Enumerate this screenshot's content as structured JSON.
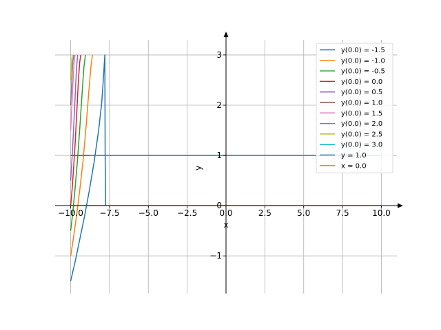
{
  "chart_data": {
    "type": "line",
    "title": "",
    "xlabel": "x",
    "ylabel": "y",
    "xlim": [
      -11,
      11
    ],
    "ylim": [
      -1.75,
      3.3
    ],
    "grid": true,
    "legend_position": "top-right",
    "x_ticks": [
      -10,
      -7.5,
      -5,
      -2.5,
      0,
      2.5,
      5,
      7.5,
      10
    ],
    "x_tick_labels": [
      "−10.0",
      "−7.5",
      "−5.0",
      "−2.5",
      "0.0",
      "2.5",
      "5.0",
      "7.5",
      "10.0"
    ],
    "y_ticks": [
      -1,
      0,
      1,
      2,
      3
    ],
    "y_tick_labels": [
      "−1",
      "0",
      "1",
      "2",
      "3"
    ],
    "series": [
      {
        "name": "y(0.0) = -1.5",
        "color": "#1f77b4",
        "x": [
          -10.0,
          -9.7,
          -9.4,
          -9.1,
          -8.8,
          -8.5,
          -8.2,
          -8.0,
          -7.9,
          -7.85,
          -7.82,
          -7.8,
          -7.78,
          -7.75
        ],
        "y": [
          -1.5,
          -1.1,
          -0.65,
          -0.2,
          0.3,
          0.85,
          1.5,
          2.05,
          2.5,
          2.75,
          2.9,
          3.0,
          1.0,
          0.0
        ]
      },
      {
        "name": "y(0.0) = -1.0",
        "color": "#ff7f0e",
        "x": [
          -10.0,
          -9.8,
          -9.6,
          -9.4,
          -9.2,
          -9.0,
          -8.85,
          -8.7,
          -8.6
        ],
        "y": [
          -1.0,
          -0.6,
          -0.15,
          0.35,
          0.9,
          1.6,
          2.2,
          2.75,
          3.0
        ]
      },
      {
        "name": "y(0.0) = -0.5",
        "color": "#2ca02c",
        "x": [
          -10.0,
          -9.85,
          -9.7,
          -9.55,
          -9.4,
          -9.25,
          -9.15,
          -9.05
        ],
        "y": [
          -0.5,
          -0.1,
          0.4,
          0.95,
          1.6,
          2.3,
          2.75,
          3.0
        ]
      },
      {
        "name": "y(0.0) = 0.0",
        "color": "#d62728",
        "x": [
          -10.0,
          -9.9,
          -9.8,
          -9.7,
          -9.6,
          -9.5,
          -9.42,
          -9.35
        ],
        "y": [
          0.0,
          0.35,
          0.8,
          1.3,
          1.9,
          2.5,
          2.85,
          3.0
        ]
      },
      {
        "name": "y(0.0) = 0.5",
        "color": "#9467bd",
        "x": [
          -10.0,
          -9.9,
          -9.8,
          -9.7,
          -9.62,
          -9.55
        ],
        "y": [
          0.5,
          1.0,
          1.6,
          2.25,
          2.75,
          3.0
        ]
      },
      {
        "name": "y(0.0) = 1.0",
        "color": "#8c564b",
        "x": [
          -10.0,
          -9.6,
          -9.2,
          -8.8
        ],
        "y": [
          1.0,
          1.0,
          1.0,
          1.0
        ]
      },
      {
        "name": "y(0.0) = 1.5",
        "color": "#e377c2",
        "x": [
          -10.0,
          -9.92,
          -9.85,
          -9.78,
          -9.72
        ],
        "y": [
          1.5,
          2.0,
          2.45,
          2.85,
          3.0
        ]
      },
      {
        "name": "y(0.0) = 2.0",
        "color": "#7f7f7f",
        "x": [
          -10.0,
          -9.95,
          -9.9,
          -9.85,
          -9.8
        ],
        "y": [
          2.0,
          2.35,
          2.65,
          2.9,
          3.0
        ]
      },
      {
        "name": "y(0.0) = 2.5",
        "color": "#bcbd22",
        "x": [
          -10.0,
          -9.97,
          -9.93,
          -9.9
        ],
        "y": [
          2.5,
          2.7,
          2.9,
          3.0
        ]
      },
      {
        "name": "y(0.0) = 3.0",
        "color": "#17becf",
        "x": [
          -10.0,
          -9.99
        ],
        "y": [
          3.0,
          3.0
        ]
      },
      {
        "name": "y = 1.0",
        "color": "#1f77b4",
        "x": [
          -10.0,
          10.0
        ],
        "y": [
          1.0,
          1.0
        ]
      },
      {
        "name": "x = 0.0",
        "color": "#ff7f0e",
        "x": [
          -10.0,
          10.0
        ],
        "y": [
          0.0,
          0.0
        ]
      }
    ]
  }
}
